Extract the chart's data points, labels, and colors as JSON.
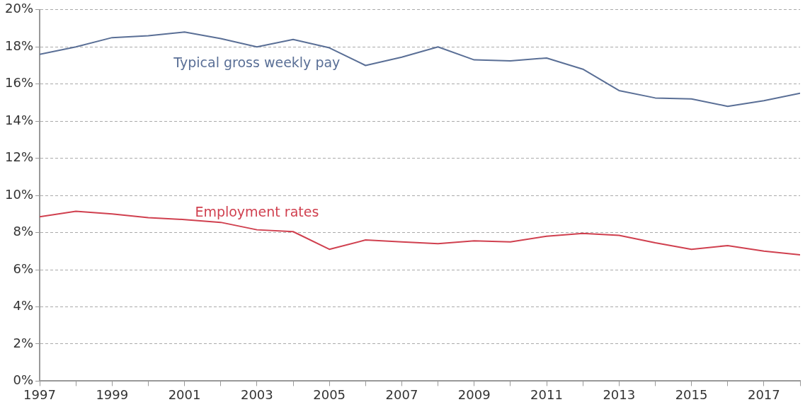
{
  "chart_data": {
    "type": "line",
    "x": [
      1997,
      1998,
      1999,
      2000,
      2001,
      2002,
      2003,
      2004,
      2005,
      2006,
      2007,
      2008,
      2009,
      2010,
      2011,
      2012,
      2013,
      2014,
      2015,
      2016,
      2017,
      2018
    ],
    "series": [
      {
        "name": "Typical gross weekly pay",
        "color": "#5a6f96",
        "values": [
          17.6,
          18.0,
          18.5,
          18.6,
          18.8,
          18.45,
          18.0,
          18.4,
          17.95,
          17.0,
          17.45,
          18.0,
          17.3,
          17.25,
          17.4,
          16.8,
          15.65,
          15.25,
          15.2,
          14.8,
          15.1,
          15.5
        ]
      },
      {
        "name": "Employment rates",
        "color": "#d0404f",
        "values": [
          8.85,
          9.15,
          9.0,
          8.8,
          8.7,
          8.55,
          8.15,
          8.05,
          7.1,
          7.6,
          7.5,
          7.4,
          7.55,
          7.5,
          7.8,
          7.95,
          7.85,
          7.45,
          7.1,
          7.3,
          7.0,
          6.8
        ]
      }
    ],
    "xlim": [
      1997,
      2018
    ],
    "xticks": [
      1997,
      {
        "value": 1998,
        "label": null
      },
      1999,
      {
        "value": 2000,
        "label": null
      },
      2001,
      {
        "value": 2002,
        "label": null
      },
      2003,
      {
        "value": 2004,
        "label": null
      },
      2005,
      {
        "value": 2006,
        "label": null
      },
      2007,
      {
        "value": 2008,
        "label": null
      },
      2009,
      {
        "value": 2010,
        "label": null
      },
      2011,
      {
        "value": 2012,
        "label": null
      },
      2013,
      {
        "value": 2014,
        "label": null
      },
      2015,
      {
        "value": 2016,
        "label": null
      },
      2017,
      {
        "value": 2018,
        "label": null
      }
    ],
    "ylim": [
      0,
      20
    ],
    "yticks": [
      {
        "value": 0,
        "label": "0%"
      },
      {
        "value": 2,
        "label": "2%"
      },
      {
        "value": 4,
        "label": "4%"
      },
      {
        "value": 6,
        "label": "6%"
      },
      {
        "value": 8,
        "label": "8%"
      },
      {
        "value": 10,
        "label": "10%"
      },
      {
        "value": 12,
        "label": "12%"
      },
      {
        "value": 14,
        "label": "14%"
      },
      {
        "value": 16,
        "label": "16%"
      },
      {
        "value": 18,
        "label": "18%"
      },
      {
        "value": 20,
        "label": "20%"
      }
    ],
    "grid": "y",
    "legend": false,
    "marker": "none",
    "line_style": "solid"
  }
}
